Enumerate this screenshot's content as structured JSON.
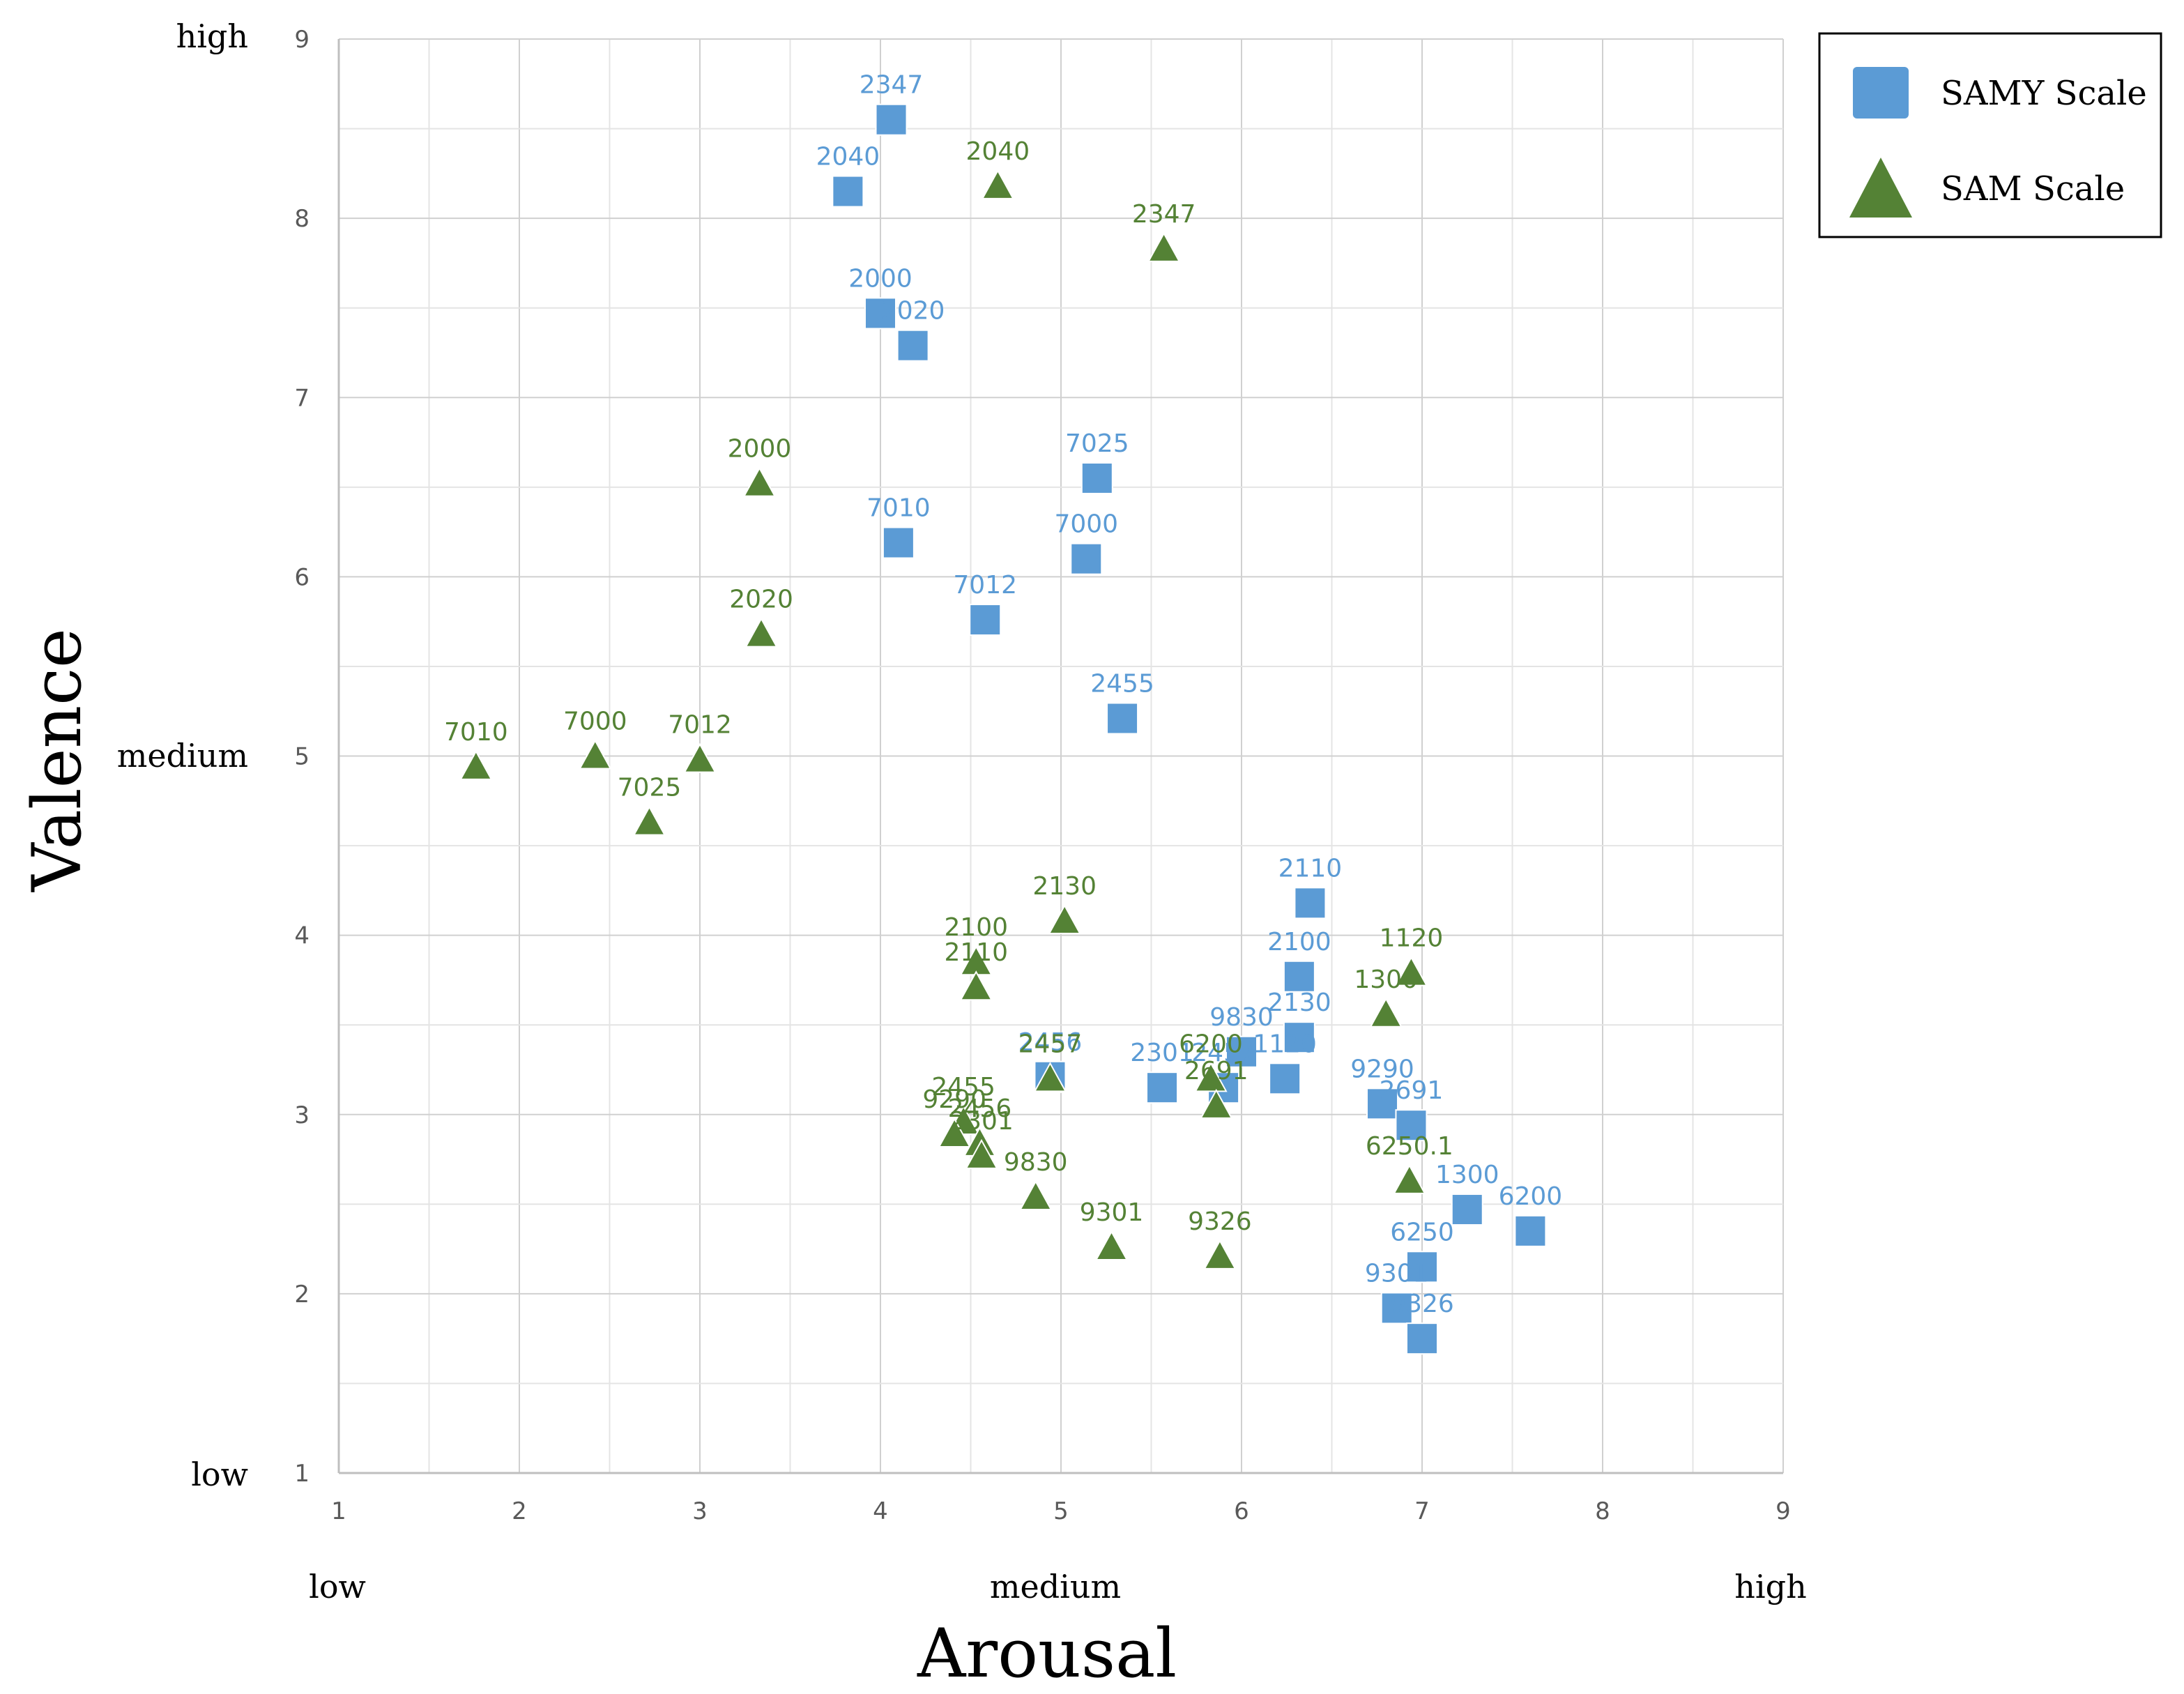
{
  "chart_data": {
    "type": "scatter",
    "xlabel": "Arousal",
    "ylabel": "Valence",
    "xlim": [
      1,
      9
    ],
    "ylim": [
      1,
      9
    ],
    "x_ticks": [
      "1",
      "2",
      "3",
      "4",
      "5",
      "6",
      "7",
      "8",
      "9"
    ],
    "y_ticks": [
      "1",
      "2",
      "3",
      "4",
      "5",
      "6",
      "7",
      "8",
      "9"
    ],
    "x_levels": [
      "low",
      "medium",
      "high"
    ],
    "y_levels": [
      "low",
      "medium",
      "high"
    ],
    "grid": true,
    "legend_position": "top-right",
    "series": [
      {
        "name": "SAMY Scale",
        "marker": "square",
        "color": "#5B9BD5",
        "label_color": "#5B9BD5",
        "points": [
          {
            "label": "2347",
            "x": 4.06,
            "y": 8.55
          },
          {
            "label": "2040",
            "x": 3.82,
            "y": 8.15
          },
          {
            "label": "2000",
            "x": 4.0,
            "y": 7.47
          },
          {
            "label": "2020",
            "x": 4.18,
            "y": 7.29
          },
          {
            "label": "7025",
            "x": 5.2,
            "y": 6.55
          },
          {
            "label": "7010",
            "x": 4.1,
            "y": 6.19
          },
          {
            "label": "7000",
            "x": 5.14,
            "y": 6.1
          },
          {
            "label": "7012",
            "x": 4.58,
            "y": 5.76
          },
          {
            "label": "2455",
            "x": 5.34,
            "y": 5.21
          },
          {
            "label": "2110",
            "x": 6.38,
            "y": 4.18
          },
          {
            "label": "2100",
            "x": 6.32,
            "y": 3.77
          },
          {
            "label": "2130",
            "x": 6.32,
            "y": 3.43
          },
          {
            "label": "9830",
            "x": 6.0,
            "y": 3.35
          },
          {
            "label": "2456",
            "x": 4.94,
            "y": 3.21
          },
          {
            "label": "2301",
            "x": 5.56,
            "y": 3.15
          },
          {
            "label": "2457",
            "x": 5.9,
            "y": 3.15
          },
          {
            "label": "1120",
            "x": 6.24,
            "y": 3.2
          },
          {
            "label": "9290",
            "x": 6.78,
            "y": 3.06
          },
          {
            "label": "2691",
            "x": 6.94,
            "y": 2.94
          },
          {
            "label": "1300",
            "x": 7.25,
            "y": 2.47
          },
          {
            "label": "6200",
            "x": 7.6,
            "y": 2.35
          },
          {
            "label": "6250",
            "x": 7.0,
            "y": 2.15
          },
          {
            "label": "9301",
            "x": 6.86,
            "y": 1.92
          },
          {
            "label": "9326",
            "x": 7.0,
            "y": 1.75
          }
        ]
      },
      {
        "name": "SAM Scale",
        "marker": "triangle",
        "color": "#548235",
        "label_color": "#548235",
        "points": [
          {
            "label": "2040",
            "x": 4.65,
            "y": 8.18
          },
          {
            "label": "2347",
            "x": 5.57,
            "y": 7.83
          },
          {
            "label": "2000",
            "x": 3.33,
            "y": 6.52
          },
          {
            "label": "2020",
            "x": 3.34,
            "y": 5.68
          },
          {
            "label": "7010",
            "x": 1.76,
            "y": 4.94
          },
          {
            "label": "7000",
            "x": 2.42,
            "y": 5.0
          },
          {
            "label": "7012",
            "x": 3.0,
            "y": 4.98
          },
          {
            "label": "7025",
            "x": 2.72,
            "y": 4.63
          },
          {
            "label": "2130",
            "x": 5.02,
            "y": 4.08
          },
          {
            "label": "2100",
            "x": 4.53,
            "y": 3.85
          },
          {
            "label": "2110",
            "x": 4.53,
            "y": 3.71
          },
          {
            "label": "1120",
            "x": 6.94,
            "y": 3.79
          },
          {
            "label": "1300",
            "x": 6.8,
            "y": 3.56
          },
          {
            "label": "6200",
            "x": 5.83,
            "y": 3.2
          },
          {
            "label": "2457",
            "x": 4.94,
            "y": 3.2
          },
          {
            "label": "2691",
            "x": 5.86,
            "y": 3.05
          },
          {
            "label": "2455",
            "x": 4.46,
            "y": 2.96
          },
          {
            "label": "9290",
            "x": 4.41,
            "y": 2.89
          },
          {
            "label": "2456",
            "x": 4.55,
            "y": 2.84
          },
          {
            "label": "2301",
            "x": 4.56,
            "y": 2.77
          },
          {
            "label": "9830",
            "x": 4.86,
            "y": 2.54
          },
          {
            "label": "6250.1",
            "x": 6.93,
            "y": 2.63
          },
          {
            "label": "9301",
            "x": 5.28,
            "y": 2.26
          },
          {
            "label": "9326",
            "x": 5.88,
            "y": 2.21
          }
        ]
      }
    ]
  }
}
